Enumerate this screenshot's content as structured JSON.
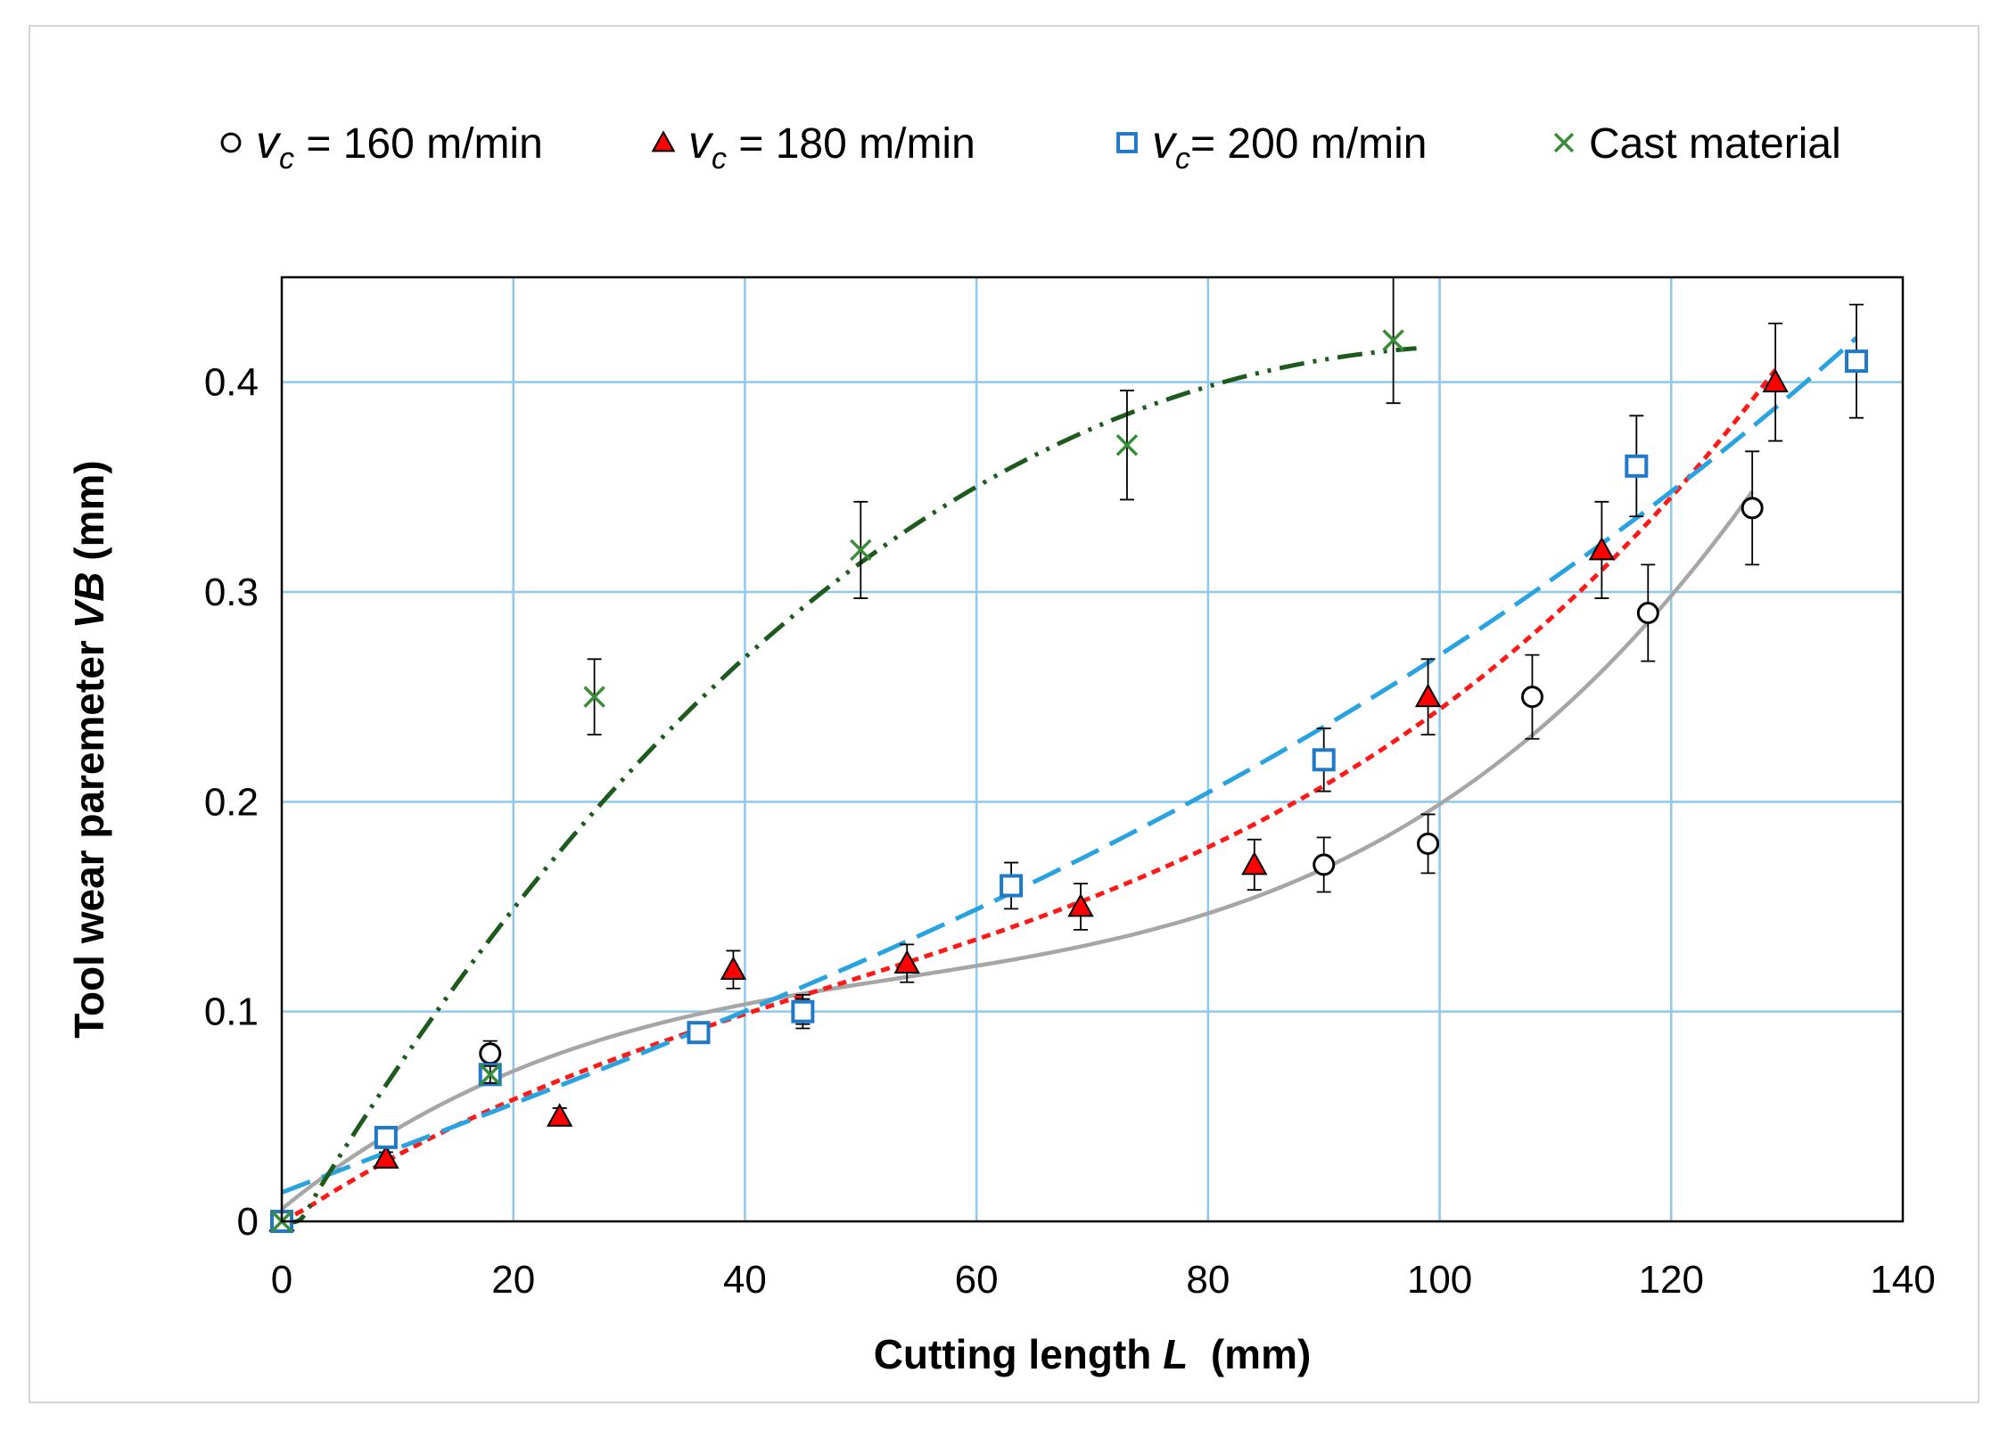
{
  "chart_data": {
    "type": "scatter",
    "xlabel_prefix": "Cutting length ",
    "xlabel_var": "L",
    "xlabel_suffix": "  (mm)",
    "ylabel_prefix": "Tool wear paremeter ",
    "ylabel_var": "VB",
    "ylabel_suffix": " (mm)",
    "xlim": [
      0,
      140
    ],
    "ylim": [
      0,
      0.45
    ],
    "xticks": [
      0,
      20,
      40,
      60,
      80,
      100,
      120,
      140
    ],
    "yticks": [
      0,
      0.1,
      0.2,
      0.3,
      0.4
    ],
    "xtick_labels": [
      "0",
      "20",
      "40",
      "60",
      "80",
      "100",
      "120",
      "140"
    ],
    "ytick_labels": [
      "0",
      "0.1",
      "0.2",
      "0.3",
      "0.4"
    ],
    "grid": true,
    "legend_position": "top",
    "series": [
      {
        "label_var": "v",
        "label_sub": "c",
        "label_rest": " = 160 m/min",
        "marker": "circle",
        "marker_color": "#000000",
        "marker_fill": "#ffffff",
        "trend_color": "#a6a6a6",
        "trend_style": "solid",
        "x": [
          0,
          18,
          45,
          90,
          99,
          108,
          118,
          127
        ],
        "y": [
          0,
          0.08,
          0.1,
          0.17,
          0.18,
          0.25,
          0.29,
          0.34
        ],
        "err": [
          0,
          0.006,
          0.008,
          0.013,
          0.014,
          0.02,
          0.023,
          0.027
        ]
      },
      {
        "label_var": "v",
        "label_sub": "c",
        "label_rest": " = 180 m/min",
        "marker": "triangle",
        "marker_color": "#000000",
        "marker_fill": "#ff0000",
        "trend_color": "#ff1a1a",
        "trend_style": "dotted",
        "x": [
          0,
          9,
          24,
          39,
          54,
          69,
          84,
          99,
          114,
          129
        ],
        "y": [
          0,
          0.03,
          0.05,
          0.12,
          0.123,
          0.15,
          0.17,
          0.25,
          0.32,
          0.4
        ],
        "err": [
          0,
          0.003,
          0.004,
          0.009,
          0.009,
          0.011,
          0.012,
          0.018,
          0.023,
          0.028
        ]
      },
      {
        "label_var": "v",
        "label_sub": "c",
        "label_rest": "= 200 m/min",
        "marker": "square",
        "marker_color": "#1f78c8",
        "marker_fill": "#ffffff",
        "trend_color": "#29a3e0",
        "trend_style": "dashed",
        "x": [
          0,
          9,
          18,
          36,
          45,
          63,
          90,
          117,
          136
        ],
        "y": [
          0,
          0.04,
          0.07,
          0.09,
          0.1,
          0.16,
          0.22,
          0.36,
          0.41
        ],
        "err": [
          0,
          0.003,
          0.005,
          0.005,
          0.006,
          0.011,
          0.015,
          0.024,
          0.027
        ]
      },
      {
        "label_var": "",
        "label_sub": "",
        "label_rest": "Cast material",
        "marker": "x",
        "marker_color": "#3a8c3a",
        "marker_fill": "none",
        "trend_color": "#1e5a1e",
        "trend_style": "dashdotdot",
        "x": [
          0,
          18,
          27,
          50,
          73,
          96
        ],
        "y": [
          0,
          0.07,
          0.25,
          0.32,
          0.37,
          0.42
        ],
        "err": [
          0,
          0.004,
          0.018,
          0.023,
          0.026,
          0.03
        ]
      }
    ]
  }
}
